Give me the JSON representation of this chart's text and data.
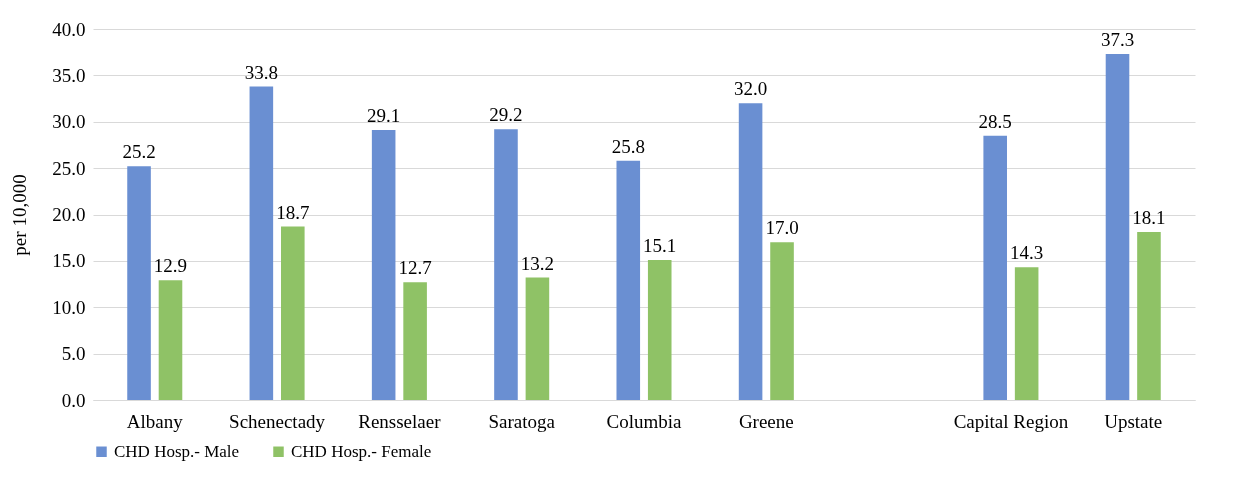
{
  "chart_data": {
    "type": "bar",
    "ylabel": "per 10,000",
    "categories": [
      "Albany",
      "Schenectady",
      "Rensselaer",
      "Saratoga",
      "Columbia",
      "Greene",
      null,
      "Capital Region",
      "Upstate"
    ],
    "series": [
      {
        "name": "CHD Hosp.- Male",
        "color": "#6a8fd2",
        "values": [
          25.2,
          33.8,
          29.1,
          29.2,
          25.8,
          32.0,
          null,
          28.5,
          37.3
        ],
        "value_labels": [
          "25.2",
          "33.8",
          "29.1",
          "29.2",
          "25.8",
          "32.0",
          null,
          "28.5",
          "37.3"
        ]
      },
      {
        "name": "CHD Hosp.- Female",
        "color": "#8fc266",
        "values": [
          12.9,
          18.7,
          12.7,
          13.2,
          15.1,
          17.0,
          null,
          14.3,
          18.1
        ],
        "value_labels": [
          "12.9",
          "18.7",
          "12.7",
          "13.2",
          "15.1",
          "17.0",
          null,
          "14.3",
          "18.1"
        ]
      }
    ],
    "ylim": [
      0,
      40
    ],
    "yticks": [
      {
        "value": 0,
        "label": "0.0"
      },
      {
        "value": 5,
        "label": "5.0"
      },
      {
        "value": 10,
        "label": "10.0"
      },
      {
        "value": 15,
        "label": "15.0"
      },
      {
        "value": 20,
        "label": "20.0"
      },
      {
        "value": 25,
        "label": "25.0"
      },
      {
        "value": 30,
        "label": "30.0"
      },
      {
        "value": 35,
        "label": "35.0"
      },
      {
        "value": 40,
        "label": "40.0"
      }
    ],
    "grid": "y",
    "legend": "bottom"
  }
}
